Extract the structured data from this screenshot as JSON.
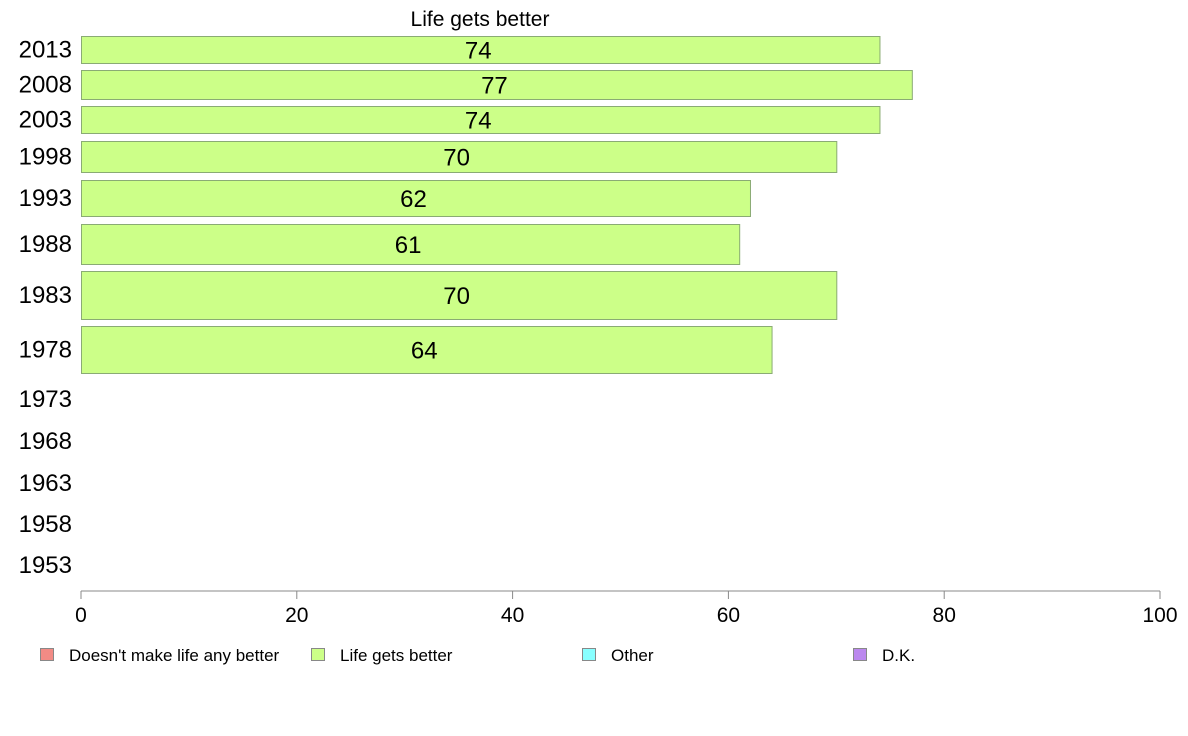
{
  "chart_data": {
    "type": "bar",
    "orientation": "horizontal",
    "title": "Life gets better",
    "categories": [
      "2013",
      "2008",
      "2003",
      "1998",
      "1993",
      "1988",
      "1983",
      "1978",
      "1973",
      "1968",
      "1963",
      "1958",
      "1953"
    ],
    "series": [
      {
        "name": "Life gets better",
        "color": "#ccff88",
        "values": [
          74,
          77,
          74,
          70,
          62,
          61,
          70,
          64,
          null,
          null,
          null,
          null,
          null
        ]
      }
    ],
    "xlim": [
      0,
      100
    ],
    "xticks": [
      0,
      20,
      40,
      60,
      80,
      100
    ],
    "grid": false,
    "legend_position": "bottom",
    "legend": [
      {
        "label": "Doesn't make life any better",
        "color": "#f28b85"
      },
      {
        "label": "Life gets better",
        "color": "#ccff88"
      },
      {
        "label": "Other",
        "color": "#88ffff"
      },
      {
        "label": "D.K.",
        "color": "#bb88ee"
      }
    ]
  }
}
